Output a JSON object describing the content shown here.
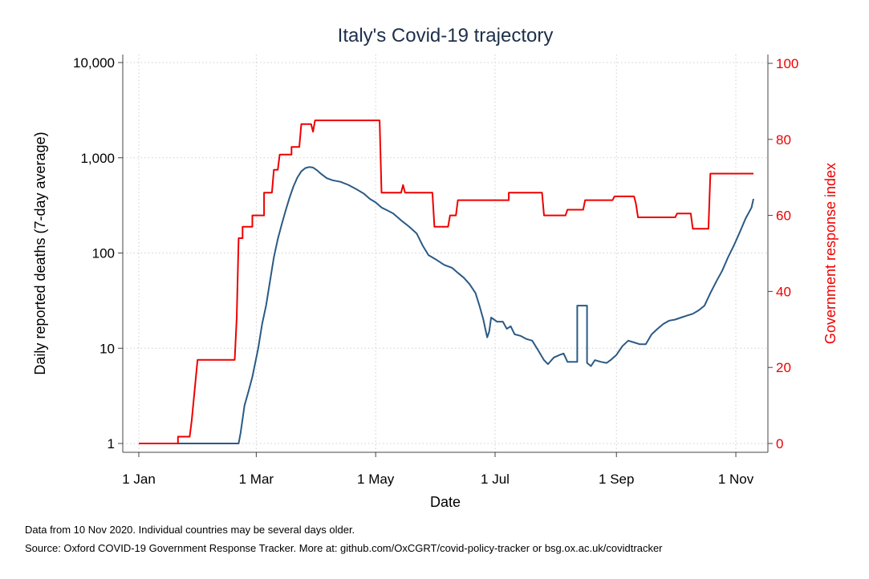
{
  "chart_data": {
    "type": "line",
    "title": "Italy's Covid-19 trajectory",
    "xlabel": "Date",
    "ylabel_left": "Daily reported deaths (7-day average)",
    "ylabel_right": "Government response index",
    "x_ticks": [
      "1 Jan",
      "1 Mar",
      "1 May",
      "1 Jul",
      "1 Sep",
      "1 Nov"
    ],
    "x_tick_dates": [
      "2020-01-01",
      "2020-03-01",
      "2020-05-01",
      "2020-07-01",
      "2020-09-01",
      "2020-11-01"
    ],
    "x_range": [
      "2020-01-01",
      "2020-11-10"
    ],
    "left_axis": {
      "scale": "log",
      "range": [
        1,
        10000
      ],
      "ticks": [
        1,
        10,
        100,
        1000,
        10000
      ],
      "tick_labels": [
        "1",
        "10",
        "100",
        "1,000",
        "10,000"
      ]
    },
    "right_axis": {
      "scale": "linear",
      "range": [
        0,
        100
      ],
      "ticks": [
        0,
        20,
        40,
        60,
        80,
        100
      ],
      "tick_labels": [
        "0",
        "20",
        "40",
        "60",
        "80",
        "100"
      ]
    },
    "grid": true,
    "colors": {
      "deaths": "#2a5a86",
      "index": "#ee0000",
      "title": "#1d2f4a"
    },
    "series": [
      {
        "axis": "left",
        "color": "#2a5a86",
        "points": [
          [
            "2020-01-01",
            1
          ],
          [
            "2020-02-21",
            1
          ],
          [
            "2020-02-22",
            1.3
          ],
          [
            "2020-02-24",
            2.5
          ],
          [
            "2020-02-26",
            3.5
          ],
          [
            "2020-02-28",
            5
          ],
          [
            "2020-03-02",
            10
          ],
          [
            "2020-03-04",
            18
          ],
          [
            "2020-03-06",
            28
          ],
          [
            "2020-03-08",
            50
          ],
          [
            "2020-03-10",
            90
          ],
          [
            "2020-03-12",
            140
          ],
          [
            "2020-03-14",
            200
          ],
          [
            "2020-03-16",
            280
          ],
          [
            "2020-03-18",
            380
          ],
          [
            "2020-03-20",
            500
          ],
          [
            "2020-03-22",
            620
          ],
          [
            "2020-03-24",
            720
          ],
          [
            "2020-03-26",
            780
          ],
          [
            "2020-03-28",
            800
          ],
          [
            "2020-03-30",
            790
          ],
          [
            "2020-04-01",
            740
          ],
          [
            "2020-04-03",
            680
          ],
          [
            "2020-04-06",
            610
          ],
          [
            "2020-04-09",
            580
          ],
          [
            "2020-04-13",
            560
          ],
          [
            "2020-04-17",
            520
          ],
          [
            "2020-04-21",
            470
          ],
          [
            "2020-04-25",
            420
          ],
          [
            "2020-04-28",
            370
          ],
          [
            "2020-05-01",
            340
          ],
          [
            "2020-05-04",
            300
          ],
          [
            "2020-05-07",
            280
          ],
          [
            "2020-05-10",
            260
          ],
          [
            "2020-05-14",
            220
          ],
          [
            "2020-05-18",
            190
          ],
          [
            "2020-05-22",
            160
          ],
          [
            "2020-05-25",
            120
          ],
          [
            "2020-05-28",
            95
          ],
          [
            "2020-06-01",
            85
          ],
          [
            "2020-06-05",
            75
          ],
          [
            "2020-06-09",
            70
          ],
          [
            "2020-06-12",
            62
          ],
          [
            "2020-06-15",
            55
          ],
          [
            "2020-06-18",
            47
          ],
          [
            "2020-06-21",
            38
          ],
          [
            "2020-06-23",
            28
          ],
          [
            "2020-06-25",
            20
          ],
          [
            "2020-06-26",
            16
          ],
          [
            "2020-06-27",
            13
          ],
          [
            "2020-06-28",
            15
          ],
          [
            "2020-06-29",
            21
          ],
          [
            "2020-07-02",
            19
          ],
          [
            "2020-07-05",
            19
          ],
          [
            "2020-07-07",
            16
          ],
          [
            "2020-07-09",
            17
          ],
          [
            "2020-07-11",
            14
          ],
          [
            "2020-07-14",
            13.5
          ],
          [
            "2020-07-17",
            12.5
          ],
          [
            "2020-07-20",
            12
          ],
          [
            "2020-07-23",
            9.5
          ],
          [
            "2020-07-26",
            7.5
          ],
          [
            "2020-07-28",
            6.8
          ],
          [
            "2020-07-31",
            8
          ],
          [
            "2020-08-03",
            8.5
          ],
          [
            "2020-08-05",
            8.8
          ],
          [
            "2020-08-07",
            7.2
          ],
          [
            "2020-08-10",
            7.2
          ],
          [
            "2020-08-12",
            7.2
          ],
          [
            "2020-08-12",
            28
          ],
          [
            "2020-08-15",
            28
          ],
          [
            "2020-08-17",
            28
          ],
          [
            "2020-08-17",
            7
          ],
          [
            "2020-08-19",
            6.5
          ],
          [
            "2020-08-21",
            7.5
          ],
          [
            "2020-08-24",
            7.2
          ],
          [
            "2020-08-27",
            7
          ],
          [
            "2020-08-29",
            7.5
          ],
          [
            "2020-09-01",
            8.5
          ],
          [
            "2020-09-04",
            10.5
          ],
          [
            "2020-09-07",
            12
          ],
          [
            "2020-09-10",
            11.5
          ],
          [
            "2020-09-13",
            11
          ],
          [
            "2020-09-16",
            11
          ],
          [
            "2020-09-19",
            14
          ],
          [
            "2020-09-22",
            16
          ],
          [
            "2020-09-25",
            18
          ],
          [
            "2020-09-28",
            19.5
          ],
          [
            "2020-10-01",
            20
          ],
          [
            "2020-10-04",
            21
          ],
          [
            "2020-10-07",
            22
          ],
          [
            "2020-10-10",
            23
          ],
          [
            "2020-10-13",
            25
          ],
          [
            "2020-10-16",
            28
          ],
          [
            "2020-10-19",
            38
          ],
          [
            "2020-10-22",
            50
          ],
          [
            "2020-10-25",
            65
          ],
          [
            "2020-10-28",
            90
          ],
          [
            "2020-10-31",
            120
          ],
          [
            "2020-11-03",
            165
          ],
          [
            "2020-11-06",
            230
          ],
          [
            "2020-11-09",
            300
          ],
          [
            "2020-11-10",
            370
          ]
        ]
      },
      {
        "axis": "right",
        "color": "#ee0000",
        "points": [
          [
            "2020-01-01",
            0
          ],
          [
            "2020-01-21",
            0
          ],
          [
            "2020-01-21",
            1.8
          ],
          [
            "2020-01-27",
            1.8
          ],
          [
            "2020-01-28",
            6
          ],
          [
            "2020-01-31",
            22
          ],
          [
            "2020-02-19",
            22
          ],
          [
            "2020-02-20",
            33
          ],
          [
            "2020-02-21",
            54
          ],
          [
            "2020-02-23",
            54
          ],
          [
            "2020-02-23",
            57
          ],
          [
            "2020-02-28",
            57
          ],
          [
            "2020-02-28",
            60
          ],
          [
            "2020-03-05",
            60
          ],
          [
            "2020-03-05",
            66
          ],
          [
            "2020-03-09",
            66
          ],
          [
            "2020-03-10",
            72
          ],
          [
            "2020-03-12",
            72
          ],
          [
            "2020-03-13",
            76
          ],
          [
            "2020-03-19",
            76
          ],
          [
            "2020-03-19",
            78
          ],
          [
            "2020-03-23",
            78
          ],
          [
            "2020-03-24",
            84
          ],
          [
            "2020-03-29",
            84
          ],
          [
            "2020-03-30",
            82
          ],
          [
            "2020-03-31",
            85
          ],
          [
            "2020-05-03",
            85
          ],
          [
            "2020-05-04",
            66
          ],
          [
            "2020-05-14",
            66
          ],
          [
            "2020-05-15",
            68
          ],
          [
            "2020-05-16",
            66
          ],
          [
            "2020-05-30",
            66
          ],
          [
            "2020-05-31",
            57
          ],
          [
            "2020-06-07",
            57
          ],
          [
            "2020-06-08",
            60
          ],
          [
            "2020-06-11",
            60
          ],
          [
            "2020-06-12",
            64
          ],
          [
            "2020-07-08",
            64
          ],
          [
            "2020-07-08",
            66
          ],
          [
            "2020-07-25",
            66
          ],
          [
            "2020-07-26",
            60
          ],
          [
            "2020-08-06",
            60
          ],
          [
            "2020-08-07",
            61.5
          ],
          [
            "2020-08-15",
            61.5
          ],
          [
            "2020-08-16",
            64
          ],
          [
            "2020-08-30",
            64
          ],
          [
            "2020-08-31",
            65
          ],
          [
            "2020-09-10",
            65
          ],
          [
            "2020-09-11",
            63
          ],
          [
            "2020-09-12",
            59.5
          ],
          [
            "2020-10-01",
            59.5
          ],
          [
            "2020-10-02",
            60.5
          ],
          [
            "2020-10-09",
            60.5
          ],
          [
            "2020-10-10",
            56.5
          ],
          [
            "2020-10-18",
            56.5
          ],
          [
            "2020-10-19",
            71
          ],
          [
            "2020-11-10",
            71
          ]
        ]
      }
    ]
  },
  "notes": {
    "line1": "Data from 10 Nov 2020. Individual countries may be several days older.",
    "line2": "Source: Oxford COVID-19 Government Response Tracker. More at: github.com/OxCGRT/covid-policy-tracker or bsg.ox.ac.uk/covidtracker"
  }
}
